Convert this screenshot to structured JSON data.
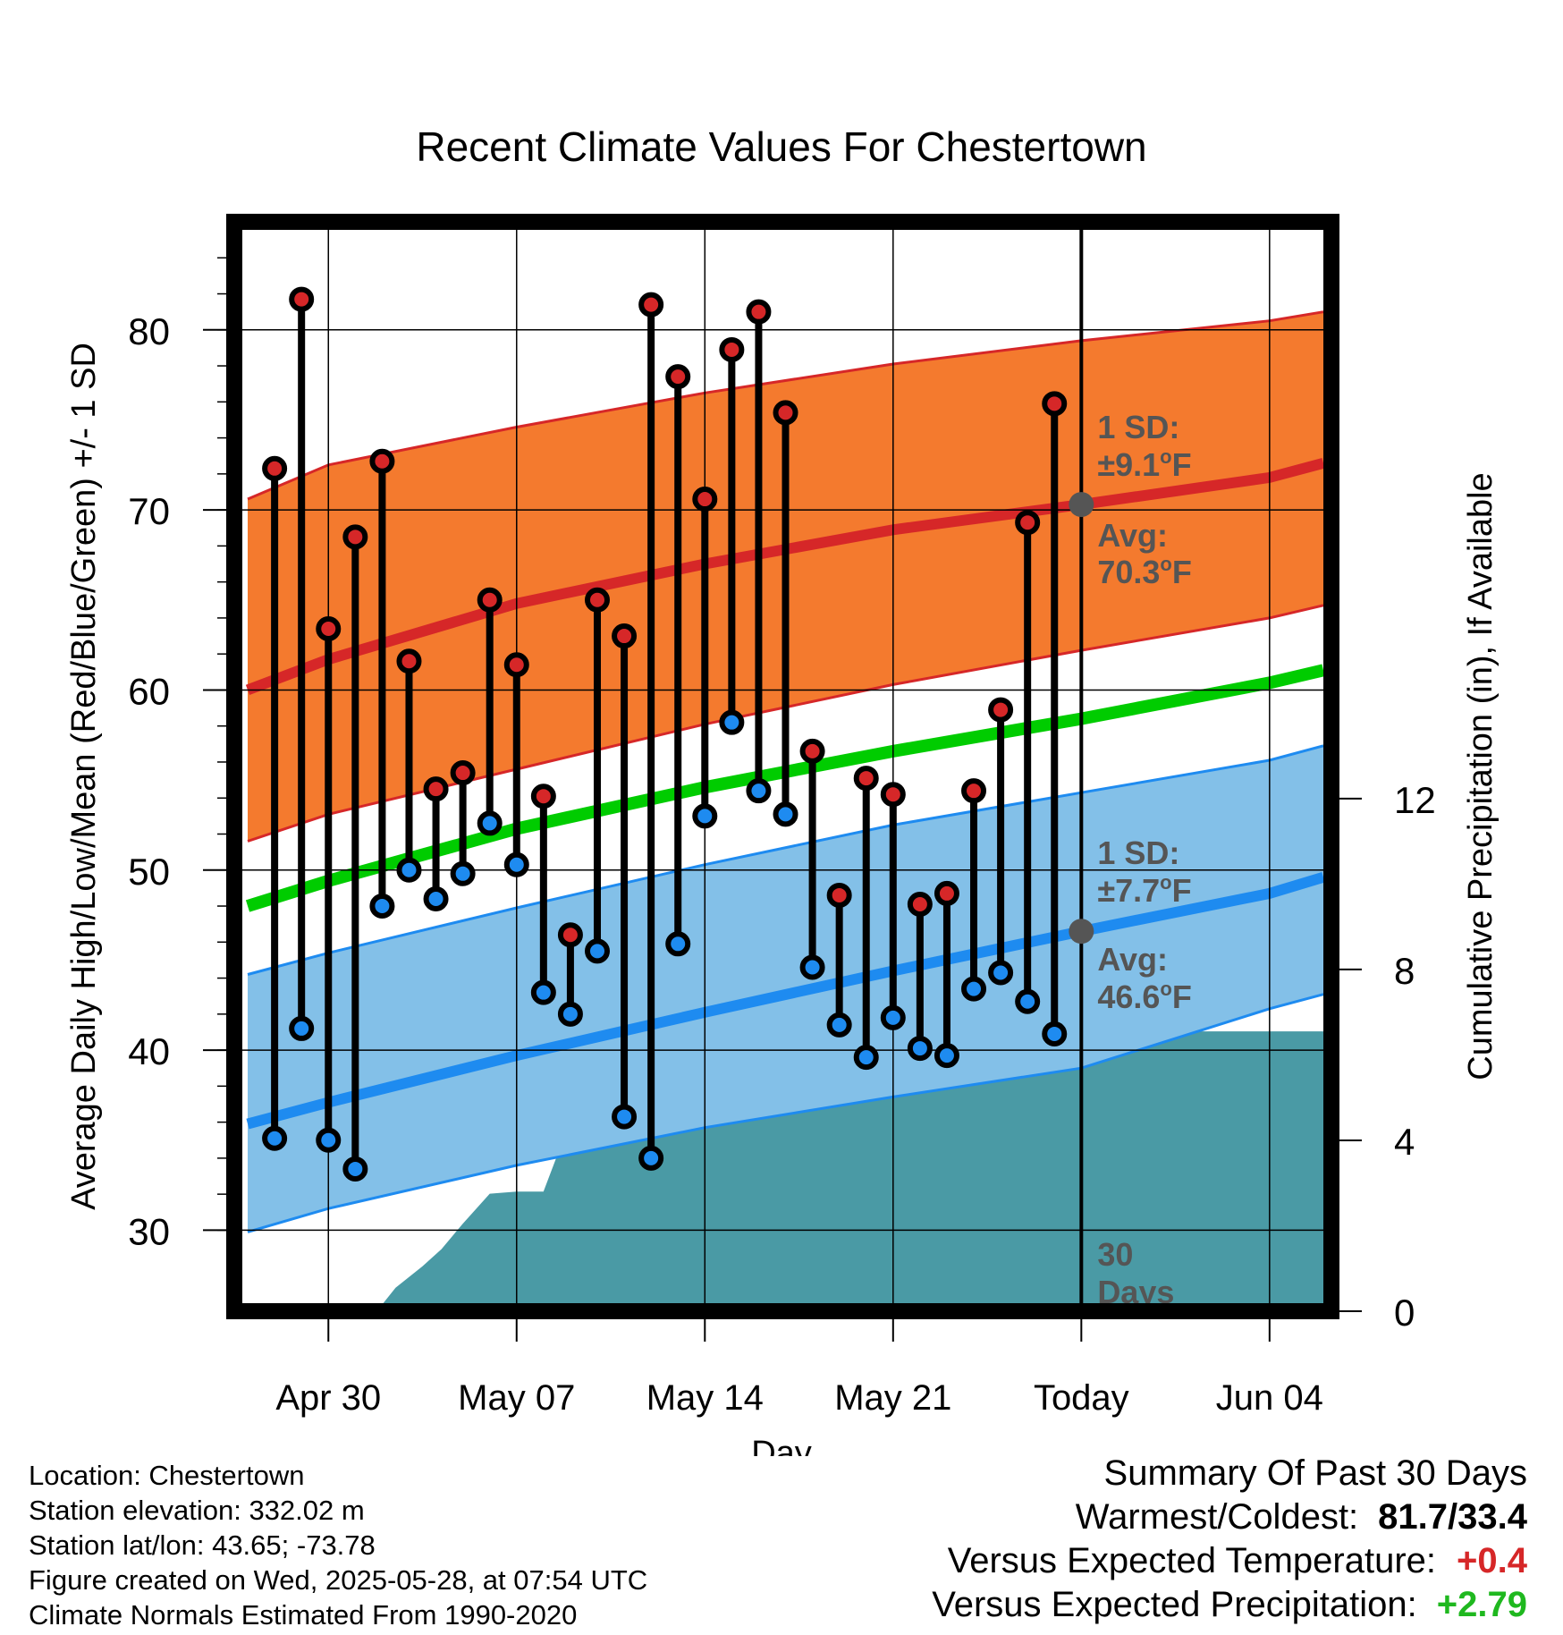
{
  "chart_data": {
    "type": "line",
    "title": "Recent Climate Values For Chestertown",
    "xlabel": "Day",
    "ylabel": "Average Daily High/Low/Mean (Red/Blue/Green) +/- 1 SD",
    "ylabel_right": "Cumulative Precipitation (in), If Available",
    "ylim": [
      25.5,
      86
    ],
    "ylim_right": [
      0,
      25.5
    ],
    "xlim": [
      -3.5,
      37.3
    ],
    "x_ticks": [
      {
        "day": 0,
        "label": "Apr 30"
      },
      {
        "day": 7,
        "label": "May 07"
      },
      {
        "day": 14,
        "label": "May 14"
      },
      {
        "day": 21,
        "label": "May 21"
      },
      {
        "day": 28,
        "label": "Today"
      },
      {
        "day": 35,
        "label": "Jun 04"
      }
    ],
    "y_ticks": [
      30,
      40,
      50,
      60,
      70,
      80
    ],
    "y_ticks_right": [
      0,
      4,
      8,
      12
    ],
    "grid": true,
    "today_day": 28,
    "today_label": [
      "30",
      "Days"
    ],
    "colors": {
      "high_band": "#f47a2e",
      "high_line": "#d62728",
      "low_band": "#83c0e8",
      "low_line": "#1e8bf0",
      "mean_line": "#00cc00",
      "precip": "#4a9aa5",
      "marker_edge": "#000000",
      "avg_dot": "#555555",
      "annotation": "#555555"
    },
    "high_normal": {
      "x": [
        -3,
        0,
        7,
        14,
        21,
        28,
        35,
        37
      ],
      "avg": [
        60.0,
        61.7,
        64.8,
        67.0,
        68.9,
        70.3,
        71.8,
        72.6
      ],
      "upper": [
        70.6,
        72.5,
        74.6,
        76.5,
        78.1,
        79.4,
        80.5,
        81.0
      ],
      "lower": [
        51.6,
        53.1,
        55.6,
        58.1,
        60.3,
        62.2,
        64.0,
        64.7
      ]
    },
    "low_normal": {
      "x": [
        -3,
        0,
        7,
        14,
        21,
        28,
        35,
        37
      ],
      "avg": [
        35.9,
        37.1,
        39.7,
        42.1,
        44.4,
        46.6,
        48.7,
        49.6
      ],
      "upper": [
        44.2,
        45.4,
        47.9,
        50.3,
        52.5,
        54.3,
        56.1,
        56.9
      ],
      "lower": [
        29.9,
        31.2,
        33.6,
        35.7,
        37.4,
        39.0,
        42.3,
        43.1
      ]
    },
    "mean_normal": {
      "x": [
        -3,
        0,
        7,
        14,
        21,
        28,
        35,
        37
      ],
      "values": [
        48.0,
        49.4,
        52.3,
        54.6,
        56.6,
        58.4,
        60.4,
        61.1
      ]
    },
    "observed": {
      "x": [
        -2,
        -1,
        0,
        1,
        2,
        3,
        4,
        5,
        6,
        7,
        8,
        9,
        10,
        11,
        12,
        13,
        14,
        15,
        16,
        17,
        18,
        19,
        20,
        21,
        22,
        23,
        24,
        25,
        26,
        27
      ],
      "high": [
        72.3,
        81.7,
        63.4,
        68.5,
        72.7,
        61.6,
        54.5,
        55.4,
        65.0,
        61.4,
        54.1,
        46.4,
        65.0,
        63.0,
        81.4,
        77.4,
        70.6,
        78.9,
        81.0,
        75.4,
        56.6,
        48.6,
        55.1,
        54.2,
        48.1,
        48.7,
        54.4,
        58.9,
        69.3,
        75.9
      ],
      "low": [
        35.1,
        41.2,
        35.0,
        33.4,
        48.0,
        50.0,
        48.4,
        49.8,
        52.6,
        50.3,
        43.2,
        42.0,
        45.5,
        36.3,
        34.0,
        45.9,
        53.0,
        58.2,
        54.4,
        53.1,
        44.6,
        41.4,
        39.6,
        41.8,
        40.1,
        39.7,
        43.4,
        44.3,
        42.7,
        40.9
      ]
    },
    "precip_cumulative": {
      "x": [
        -2,
        -1,
        0,
        1,
        1.8,
        2.5,
        3.5,
        4.2,
        5,
        6,
        7,
        8,
        8.6,
        9.3,
        10,
        11,
        12,
        13,
        14,
        15,
        16,
        17,
        18,
        19,
        20,
        21,
        22,
        23,
        24,
        25,
        26,
        27,
        28,
        37.3
      ],
      "values": [
        0,
        0,
        0,
        0,
        0,
        0.55,
        1.05,
        1.45,
        2.05,
        2.75,
        2.8,
        2.8,
        3.8,
        4.5,
        4.75,
        4.75,
        4.75,
        4.75,
        4.8,
        4.8,
        4.8,
        5.65,
        5.85,
        5.9,
        5.95,
        6.15,
        6.25,
        6.35,
        6.45,
        6.5,
        6.55,
        6.55,
        6.55,
        6.55
      ]
    },
    "annotations": {
      "high_sd_label": "1 SD:",
      "high_sd_value": "±9.1",
      "high_avg_label": "Avg:",
      "high_avg_value": "70.3",
      "low_sd_label": "1 SD:",
      "low_sd_value": "±7.7",
      "low_avg_label": "Avg:",
      "low_avg_value": "46.6",
      "degree_sup": "o",
      "unit": "F"
    }
  },
  "footer": {
    "location": "Location: Chestertown",
    "elevation": "Station elevation: 332.02 m",
    "latlon": "Station lat/lon: 43.65; -73.78",
    "created": "Figure created on Wed, 2025-05-28, at 07:54 UTC",
    "normals": "Climate Normals Estimated From 1990-2020"
  },
  "summary": {
    "title": "Summary Of Past 30 Days",
    "warmest_label": "Warmest/Coldest:",
    "warmest_value": "81.7/33.4",
    "temp_label": "Versus Expected Temperature:",
    "temp_value": "+0.4",
    "precip_label": "Versus Expected Precipitation:",
    "precip_value": "+2.79"
  }
}
